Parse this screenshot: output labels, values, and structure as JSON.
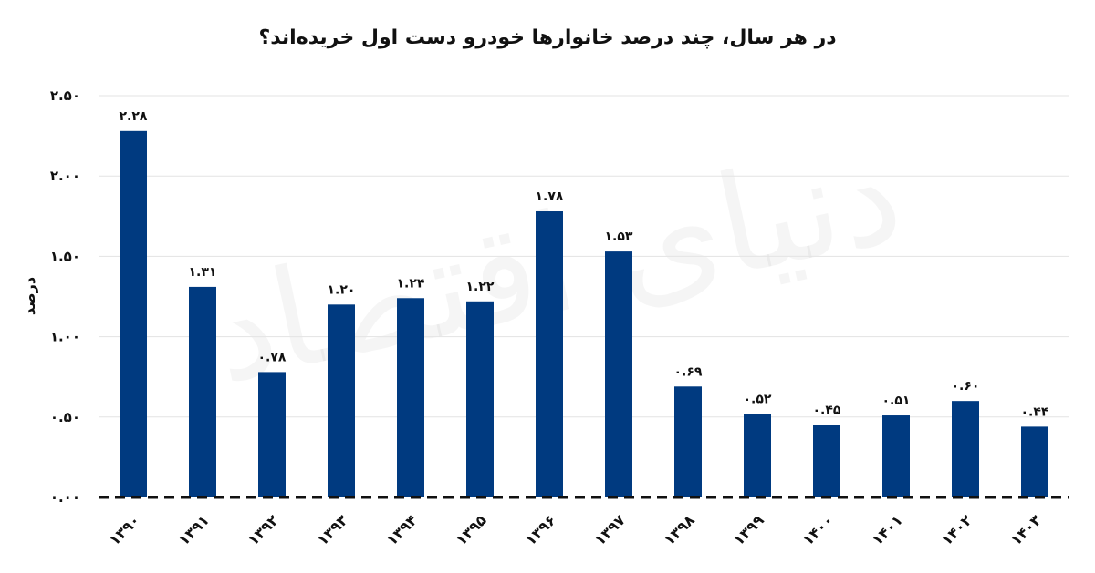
{
  "chart_data": {
    "type": "bar",
    "title": "در هر سال، چند درصد خانوارها خودرو دست اول خریده‌اند؟",
    "ylabel": "درصد",
    "xlabel": "",
    "ylim": [
      0,
      2.5
    ],
    "yticks": [
      0,
      0.5,
      1.0,
      1.5,
      2.0,
      2.5
    ],
    "ytick_labels": [
      "۰.۰۰",
      "۰.۵۰",
      "۱.۰۰",
      "۱.۵۰",
      "۲.۰۰",
      "۲.۵۰"
    ],
    "categories": [
      "۱۳۹۰",
      "۱۳۹۱",
      "۱۳۹۲",
      "۱۳۹۳",
      "۱۳۹۴",
      "۱۳۹۵",
      "۱۳۹۶",
      "۱۳۹۷",
      "۱۳۹۸",
      "۱۳۹۹",
      "۱۴۰۰",
      "۱۴۰۱",
      "۱۴۰۲",
      "۱۴۰۳"
    ],
    "values": [
      2.28,
      1.31,
      0.78,
      1.2,
      1.24,
      1.22,
      1.78,
      1.53,
      0.69,
      0.52,
      0.45,
      0.51,
      0.6,
      0.44
    ],
    "value_labels": [
      "۲.۲۸",
      "۱.۳۱",
      "۰.۷۸",
      "۱.۲۰",
      "۱.۲۴",
      "۱.۲۲",
      "۱.۷۸",
      "۱.۵۳",
      "۰.۶۹",
      "۰.۵۲",
      "۰.۴۵",
      "۰.۵۱",
      "۰.۶۰",
      "۰.۴۴"
    ],
    "grid": true,
    "bar_color": "#003a80",
    "grid_color": "#e3e3e3",
    "axis_color": "#111111"
  },
  "watermark": "دنیای اقتصاد"
}
